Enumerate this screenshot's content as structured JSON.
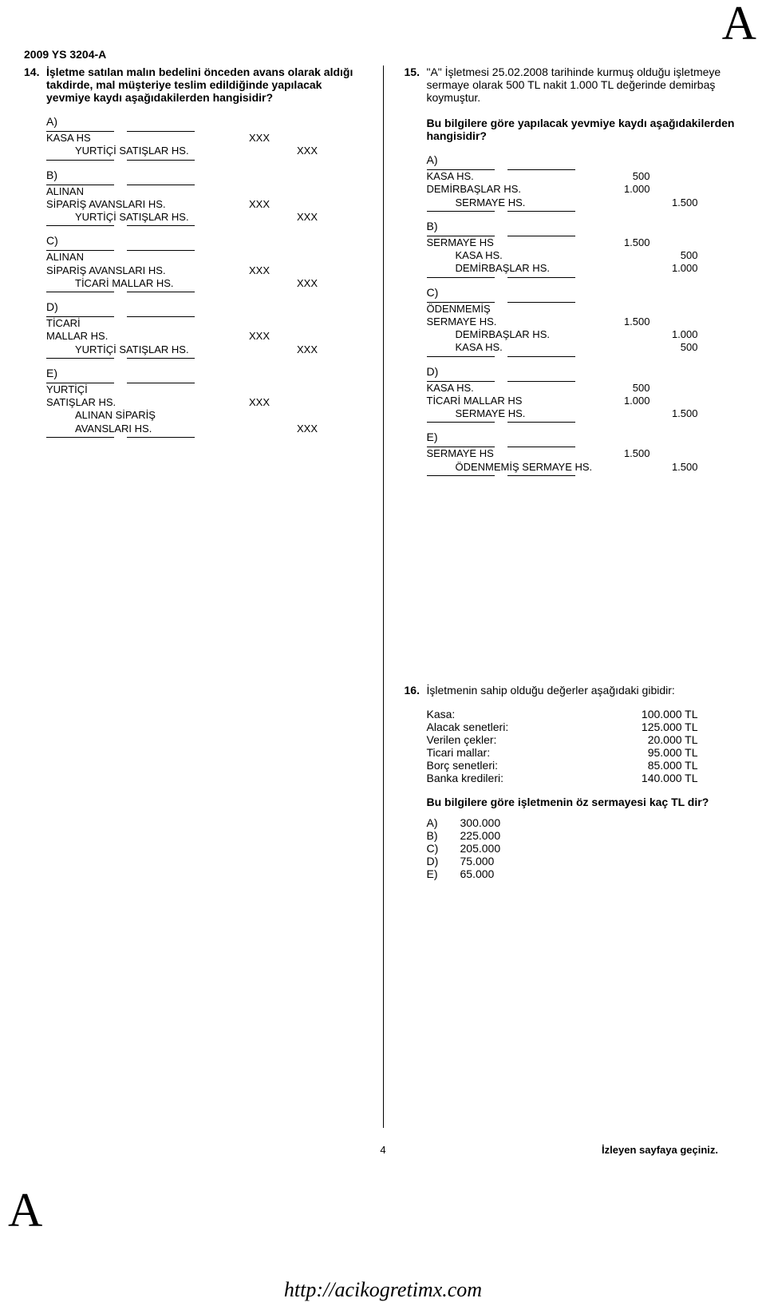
{
  "corner_letter": "A",
  "header": "2009 YS 3204-A",
  "q14": {
    "num": "14.",
    "text": "İşletme satılan malın bedelini önceden avans olarak aldığı takdirde, mal müşteriye teslim edildiğinde yapılacak yevmiye kaydı aşağıdakilerden hangisidir?",
    "opts": {
      "A": {
        "l1a": "KASA HS",
        "l1v": "XXX",
        "l2a": "YURTİÇİ SATIŞLAR HS.",
        "l2v": "XXX"
      },
      "B": {
        "l1a": "ALINAN",
        "l1b": "SİPARİŞ AVANSLARI HS.",
        "l1v": "XXX",
        "l2a": "YURTİÇİ SATIŞLAR HS.",
        "l2v": "XXX"
      },
      "C": {
        "l1a": "ALINAN",
        "l1b": "SİPARİŞ AVANSLARI HS.",
        "l1v": "XXX",
        "l2a": "TİCARİ MALLAR HS.",
        "l2v": "XXX"
      },
      "D": {
        "l1a": "TİCARİ",
        "l1b": "MALLAR HS.",
        "l1v": "XXX",
        "l2a": "YURTİÇİ SATIŞLAR HS.",
        "l2v": "XXX"
      },
      "E": {
        "l1a": "YURTİÇİ",
        "l1b": "SATIŞLAR HS.",
        "l1v": "XXX",
        "l2a": "ALINAN SİPARİŞ",
        "l2b": "AVANSLARI HS.",
        "l2v": "XXX"
      }
    }
  },
  "q15": {
    "num": "15.",
    "text1": "\"A\" İşletmesi 25.02.2008 tarihinde kurmuş olduğu işletmeye sermaye olarak 500 TL nakit 1.000 TL değerinde demirbaş koymuştur.",
    "text2": "Bu bilgilere göre yapılacak yevmiye kaydı aşağıdakilerden hangisidir?",
    "opts": {
      "A": [
        {
          "ac": "KASA HS.",
          "val": "500",
          "ind": 0
        },
        {
          "ac": "DEMİRBAŞLAR HS.",
          "val": "1.000",
          "ind": 0
        },
        {
          "ac": "SERMAYE HS.",
          "val": "1.500",
          "ind": 1
        }
      ],
      "B": [
        {
          "ac": "SERMAYE HS",
          "val": "1.500",
          "ind": 0
        },
        {
          "ac": "KASA HS.",
          "val": "500",
          "ind": 1
        },
        {
          "ac": "DEMİRBAŞLAR HS.",
          "val": "1.000",
          "ind": 1
        }
      ],
      "C": [
        {
          "ac": "ÖDENMEMİŞ",
          "val": "",
          "ind": 0
        },
        {
          "ac": "SERMAYE HS.",
          "val": "1.500",
          "ind": 0
        },
        {
          "ac": "DEMİRBAŞLAR HS.",
          "val": "1.000",
          "ind": 1
        },
        {
          "ac": "KASA HS.",
          "val": "500",
          "ind": 1
        }
      ],
      "D": [
        {
          "ac": "KASA HS.",
          "val": "500",
          "ind": 0
        },
        {
          "ac": "TİCARİ MALLAR HS",
          "val": "1.000",
          "ind": 0
        },
        {
          "ac": "SERMAYE HS.",
          "val": "1.500",
          "ind": 1
        }
      ],
      "E": [
        {
          "ac": "SERMAYE HS",
          "val": "1.500",
          "ind": 0
        },
        {
          "ac": "ÖDENMEMİŞ SERMAYE HS.",
          "val": "1.500",
          "ind": 1
        }
      ]
    }
  },
  "q16": {
    "num": "16.",
    "text": "İşletmenin sahip olduğu değerler aşağıdaki gibidir:",
    "items": [
      {
        "n": "Kasa:",
        "v": "100.000 TL"
      },
      {
        "n": "Alacak senetleri:",
        "v": "125.000 TL"
      },
      {
        "n": "Verilen çekler:",
        "v": "20.000 TL"
      },
      {
        "n": "Ticari mallar:",
        "v": "95.000 TL"
      },
      {
        "n": "Borç senetleri:",
        "v": "85.000 TL"
      },
      {
        "n": "Banka kredileri:",
        "v": "140.000 TL"
      }
    ],
    "ask": "Bu bilgilere göre işletmenin öz sermayesi kaç TL dir?",
    "answers": [
      {
        "l": "A)",
        "v": "300.000"
      },
      {
        "l": "B)",
        "v": "225.000"
      },
      {
        "l": "C)",
        "v": "205.000"
      },
      {
        "l": "D)",
        "v": "75.000"
      },
      {
        "l": "E)",
        "v": "65.000"
      }
    ]
  },
  "page_number": "4",
  "turn_page": "İzleyen sayfaya geçiniz.",
  "url": "http://acikogretimx.com",
  "letters": {
    "A": "A)",
    "B": "B)",
    "C": "C)",
    "D": "D)",
    "E": "E)"
  }
}
